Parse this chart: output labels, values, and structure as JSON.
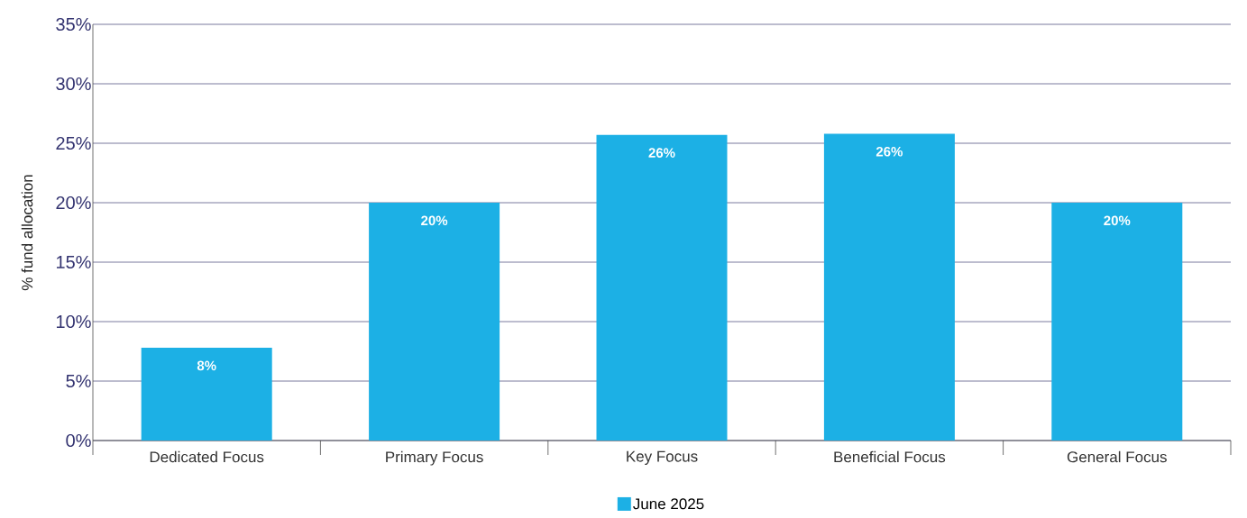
{
  "chart_data": {
    "type": "bar",
    "ylabel": "% fund allocation",
    "categories": [
      "Dedicated Focus",
      "Primary Focus",
      "Key Focus",
      "Beneficial Focus",
      "General Focus"
    ],
    "series": [
      {
        "name": "June 2025",
        "color": "#1cb0e5",
        "values": [
          7.8,
          20,
          25.7,
          25.8,
          20
        ],
        "value_labels": [
          "8%",
          "20%",
          "26%",
          "26%",
          "20%"
        ]
      }
    ],
    "ylim": [
      0,
      35
    ],
    "yticks": [
      {
        "value": 0,
        "label": "0%"
      },
      {
        "value": 5,
        "label": "5%"
      },
      {
        "value": 10,
        "label": "10%"
      },
      {
        "value": 15,
        "label": "15%"
      },
      {
        "value": 20,
        "label": "20%"
      },
      {
        "value": 25,
        "label": "25%"
      },
      {
        "value": 30,
        "label": "30%"
      },
      {
        "value": 35,
        "label": "35%"
      }
    ],
    "grid": "y",
    "legend": "bottom"
  }
}
